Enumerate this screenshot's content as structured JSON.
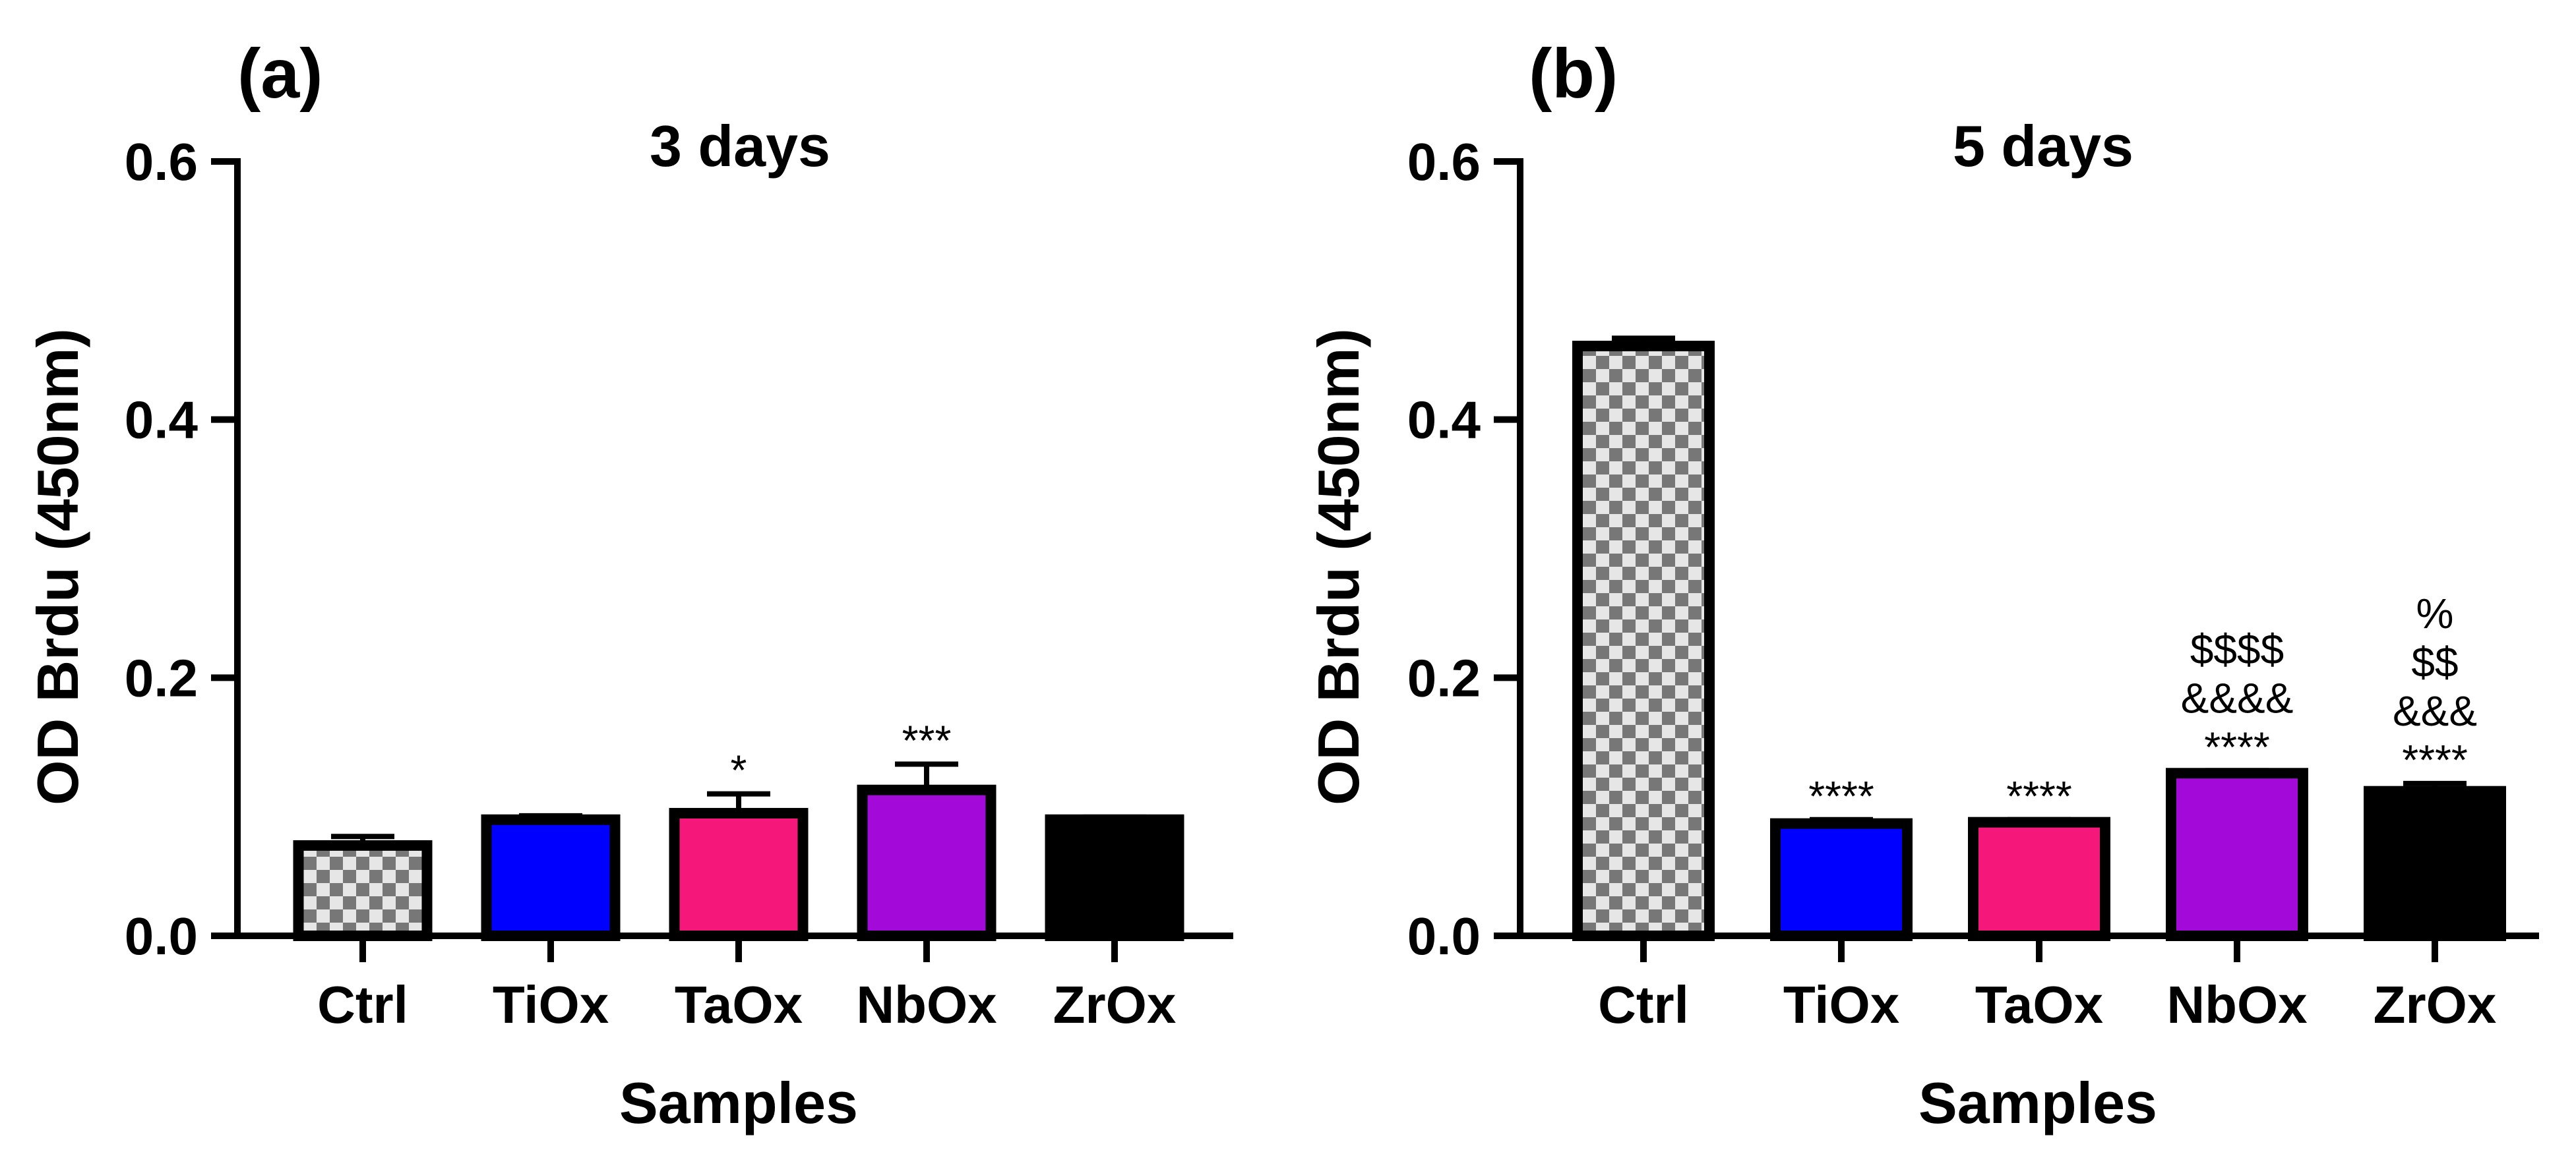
{
  "chart_data": [
    {
      "type": "bar",
      "panel_label": "(a)",
      "title": "3 days",
      "xlabel": "Samples",
      "ylabel": "OD Brdu (450nm)",
      "ylim": [
        0,
        0.6
      ],
      "yticks": [
        "0.0",
        "0.2",
        "0.4",
        "0.6"
      ],
      "grid": false,
      "categories": [
        "Ctrl",
        "TiOx",
        "TaOx",
        "NbOx",
        "ZrOx"
      ],
      "values": [
        0.07,
        0.09,
        0.095,
        0.113,
        0.09
      ],
      "errors": [
        0.007,
        0.003,
        0.015,
        0.02,
        0.002
      ],
      "fills": [
        "checker",
        "#0000ff",
        "#f5177a",
        "#a30ad9",
        "#000000"
      ],
      "annotations": [
        [],
        [],
        [
          "*"
        ],
        [
          "***"
        ],
        []
      ]
    },
    {
      "type": "bar",
      "panel_label": "(b)",
      "title": "5 days",
      "xlabel": "Samples",
      "ylabel": "OD Brdu (450nm)",
      "ylim": [
        0,
        0.6
      ],
      "yticks": [
        "0.0",
        "0.2",
        "0.4",
        "0.6"
      ],
      "grid": false,
      "categories": [
        "Ctrl",
        "TiOx",
        "TaOx",
        "NbOx",
        "ZrOx"
      ],
      "values": [
        0.457,
        0.087,
        0.088,
        0.126,
        0.112
      ],
      "errors": [
        0.006,
        0.003,
        0.002,
        0.002,
        0.006
      ],
      "fills": [
        "checker",
        "#0000ff",
        "#f5177a",
        "#a30ad9",
        "#000000"
      ],
      "annotations": [
        [],
        [
          "****"
        ],
        [
          "****"
        ],
        [
          "****",
          "&&&&",
          "$$$$"
        ],
        [
          "****",
          "&&&",
          "$$",
          "%"
        ]
      ]
    }
  ]
}
